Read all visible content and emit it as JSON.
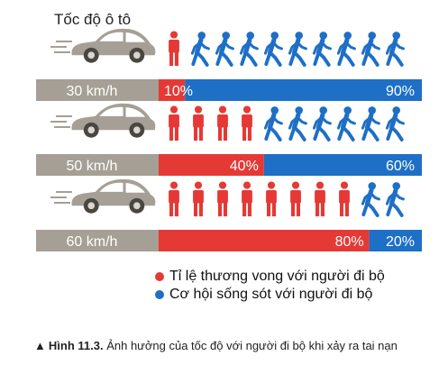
{
  "title": "Tốc độ ô tô",
  "colors": {
    "red": "#e53935",
    "blue": "#1e6fc6",
    "grey": "#a59f95",
    "car": "#a59f95"
  },
  "icons": [
    "car-icon",
    "pedestrian-standing-icon",
    "pedestrian-walking-icon"
  ],
  "chart_data": {
    "type": "bar",
    "stacked": true,
    "orientation": "horizontal",
    "categories": [
      "30 km/h",
      "50 km/h",
      "60 km/h"
    ],
    "series": [
      {
        "name": "Tỉ lệ thương vong với người đi bộ",
        "color": "#e53935",
        "values": [
          10,
          40,
          80
        ],
        "labels": [
          "10%",
          "40%",
          "80%"
        ]
      },
      {
        "name": "Cơ hội sống sót với người đi bộ",
        "color": "#1e6fc6",
        "values": [
          90,
          60,
          20
        ],
        "labels": [
          "90%",
          "60%",
          "20%"
        ]
      }
    ],
    "xlim": [
      0,
      100
    ],
    "legend_position": "bottom"
  },
  "legend": {
    "red_label": "Tỉ lệ thương vong với người đi bộ",
    "blue_label": "Cơ hội sống sót với người đi bộ"
  },
  "caption": {
    "label": "Hình 11.3.",
    "text": "Ảnh hưởng của tốc độ với người đi bộ khi xảy ra tai nạn"
  }
}
